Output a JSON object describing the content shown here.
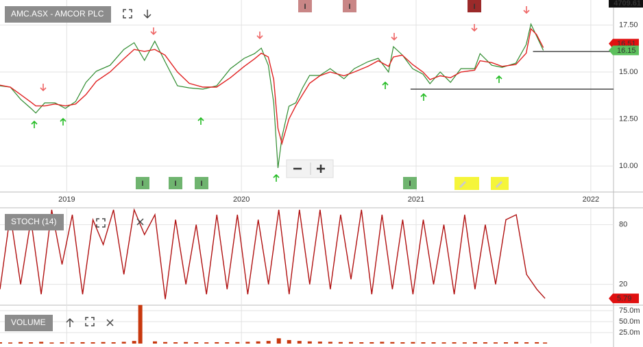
{
  "chart_data": [
    {
      "type": "line",
      "title": "AMC.ASX - AMCOR PLC",
      "header_value": "4709.61",
      "x": [
        2018.618,
        2018.677,
        2018.736,
        2018.795,
        2018.823,
        2018.874,
        2018.933,
        2018.992,
        2019.051,
        2019.11,
        2019.169,
        2019.248,
        2019.327,
        2019.386,
        2019.445,
        2019.504,
        2019.563,
        2019.634,
        2019.701,
        2019.779,
        2019.858,
        2019.937,
        2020.016,
        2020.075,
        2020.114,
        2020.154,
        2020.185,
        2020.209,
        2020.232,
        2020.272,
        2020.311,
        2020.35,
        2020.39,
        2020.449,
        2020.508,
        2020.587,
        2020.646,
        2020.724,
        2020.783,
        2020.842,
        2020.87,
        2020.921,
        2020.98,
        2021.039,
        2021.079,
        2021.138,
        2021.197,
        2021.256,
        2021.335,
        2021.366,
        2021.433,
        2021.492,
        2021.571,
        2021.63,
        2021.657,
        2021.689,
        2021.728
      ],
      "series": [
        {
          "color": "#2e8b2e",
          "values": [
            14.27,
            14.2,
            13.55,
            13.07,
            12.82,
            13.36,
            13.36,
            13.07,
            13.43,
            14.45,
            15.04,
            15.36,
            16.2,
            16.56,
            15.62,
            16.64,
            15.55,
            14.27,
            14.16,
            14.09,
            14.27,
            15.18,
            15.73,
            15.98,
            16.27,
            15.36,
            13.36,
            9.9,
            11.54,
            13.18,
            13.36,
            14.16,
            14.82,
            14.82,
            15.18,
            14.64,
            15.18,
            15.55,
            15.73,
            15.0,
            16.35,
            15.91,
            15.18,
            14.89,
            14.38,
            15.0,
            14.45,
            15.18,
            15.18,
            15.98,
            15.36,
            15.25,
            15.47,
            16.46,
            17.55,
            16.93,
            16.15
          ]
        },
        {
          "color": "#e02020",
          "values": [
            14.3,
            14.2,
            13.8,
            13.4,
            13.2,
            13.2,
            13.3,
            13.2,
            13.3,
            13.8,
            14.5,
            15.0,
            15.7,
            16.2,
            16.1,
            16.2,
            15.9,
            15.0,
            14.4,
            14.2,
            14.2,
            14.7,
            15.3,
            15.7,
            16.0,
            15.8,
            14.6,
            12.0,
            11.2,
            12.5,
            13.2,
            13.8,
            14.4,
            14.8,
            15.0,
            14.8,
            15.0,
            15.3,
            15.6,
            15.3,
            15.8,
            15.9,
            15.4,
            15.0,
            14.6,
            14.8,
            14.7,
            15.0,
            15.1,
            15.6,
            15.5,
            15.3,
            15.4,
            16.0,
            17.3,
            17.0,
            16.3
          ]
        }
      ],
      "xlim": [
        2018.618,
        2022.13
      ],
      "xticks": [
        2019,
        2020,
        2021,
        2022
      ],
      "ylim": [
        8.62,
        18.83
      ],
      "yticks": [
        {
          "value": 10,
          "label": "10.00"
        },
        {
          "value": 12.5,
          "label": "12.50"
        },
        {
          "value": 15,
          "label": "15.00"
        },
        {
          "value": 17.5,
          "label": "17.50"
        }
      ],
      "grid": true,
      "price_tags": [
        {
          "value": 16.51,
          "label": "16.51",
          "color": "#e01010"
        },
        {
          "value": 16.15,
          "label": "16.15",
          "color": "#5cc05c"
        }
      ],
      "levels": [
        {
          "value": 16.09,
          "from": 2021.669
        },
        {
          "value": 14.09,
          "from": 2020.968
        }
      ],
      "badges": [
        {
          "label": "I",
          "color": "#c98686"
        },
        {
          "label": "I",
          "color": "#c98686"
        },
        {
          "label": "I",
          "color": "#9b2a2a"
        },
        {
          "label": "I",
          "color": "#6fb46f"
        },
        {
          "label": "I",
          "color": "#6fb46f"
        },
        {
          "label": "I",
          "color": "#6fb46f"
        },
        {
          "label": "I",
          "color": "#6fb46f"
        }
      ]
    },
    {
      "type": "line",
      "title": "STOCH (14)",
      "x": [
        2018.618,
        2018.677,
        2018.736,
        2018.795,
        2018.854,
        2018.914,
        2018.973,
        2019.032,
        2019.091,
        2019.15,
        2019.209,
        2019.268,
        2019.327,
        2019.386,
        2019.445,
        2019.505,
        2019.564,
        2019.623,
        2019.682,
        2019.741,
        2019.8,
        2019.859,
        2019.918,
        2019.977,
        2020.036,
        2020.096,
        2020.155,
        2020.214,
        2020.273,
        2020.332,
        2020.391,
        2020.45,
        2020.509,
        2020.568,
        2020.627,
        2020.687,
        2020.746,
        2020.805,
        2020.864,
        2020.923,
        2020.982,
        2021.041,
        2021.1,
        2021.159,
        2021.218,
        2021.278,
        2021.337,
        2021.396,
        2021.455,
        2021.514,
        2021.573,
        2021.632,
        2021.691,
        2021.738
      ],
      "series": [
        {
          "color": "#b01010",
          "values": [
            15,
            90,
            20,
            85,
            10,
            95,
            40,
            90,
            10,
            85,
            60,
            95,
            30,
            95,
            70,
            90,
            5,
            85,
            20,
            80,
            10,
            90,
            15,
            90,
            10,
            85,
            20,
            95,
            10,
            95,
            20,
            95,
            15,
            90,
            25,
            95,
            10,
            90,
            15,
            85,
            10,
            85,
            20,
            80,
            10,
            90,
            15,
            80,
            20,
            85,
            90,
            30,
            15,
            5.79
          ]
        }
      ],
      "xlim": [
        2018.618,
        2022.13
      ],
      "xticks": [
        2019,
        2020,
        2021,
        2022
      ],
      "ylim": [
        -1,
        97
      ],
      "yticks": [
        20,
        80
      ],
      "grid": true,
      "last_tag": {
        "value": 5.79,
        "label": "5.79",
        "color": "#e01010"
      }
    },
    {
      "type": "bar",
      "title": "VOLUME",
      "x": [
        2018.618,
        2018.677,
        2018.736,
        2018.795,
        2018.854,
        2018.914,
        2018.973,
        2019.032,
        2019.091,
        2019.15,
        2019.209,
        2019.268,
        2019.327,
        2019.386,
        2019.421,
        2019.505,
        2019.564,
        2019.623,
        2019.682,
        2019.741,
        2019.8,
        2019.859,
        2019.918,
        2019.977,
        2020.036,
        2020.096,
        2020.155,
        2020.214,
        2020.273,
        2020.332,
        2020.391,
        2020.45,
        2020.509,
        2020.568,
        2020.627,
        2020.687,
        2020.746,
        2020.805,
        2020.864,
        2020.923,
        2020.982,
        2021.041,
        2021.1,
        2021.159,
        2021.218,
        2021.278,
        2021.337,
        2021.396,
        2021.455,
        2021.514,
        2021.573,
        2021.632,
        2021.691,
        2021.738
      ],
      "values": [
        3000000,
        2500000,
        3500000,
        3000000,
        4000000,
        2500000,
        3000000,
        2800000,
        3200000,
        3000000,
        3500000,
        3000000,
        4000000,
        6000000,
        88000000,
        5000000,
        3500000,
        3000000,
        3500000,
        3000000,
        2800000,
        3200000,
        3000000,
        3500000,
        4000000,
        5000000,
        6000000,
        12000000,
        8000000,
        6000000,
        5000000,
        4500000,
        4000000,
        3500000,
        3500000,
        3000000,
        3200000,
        4000000,
        3500000,
        3000000,
        3500000,
        3000000,
        3000000,
        2800000,
        3000000,
        2800000,
        3200000,
        3000000,
        2800000,
        3000000,
        3500000,
        3000000,
        3200000,
        2500000
      ],
      "color": "#c8380e",
      "xlim": [
        2018.618,
        2022.13
      ],
      "xticks": [
        2019,
        2020,
        2021,
        2022
      ],
      "ylim": [
        0,
        87500000
      ],
      "yticks": [
        {
          "value": 25000000,
          "label": "25.0m"
        },
        {
          "value": 50000000,
          "label": "50.0m"
        },
        {
          "value": 75000000,
          "label": "75.0m"
        }
      ],
      "grid": true
    }
  ]
}
